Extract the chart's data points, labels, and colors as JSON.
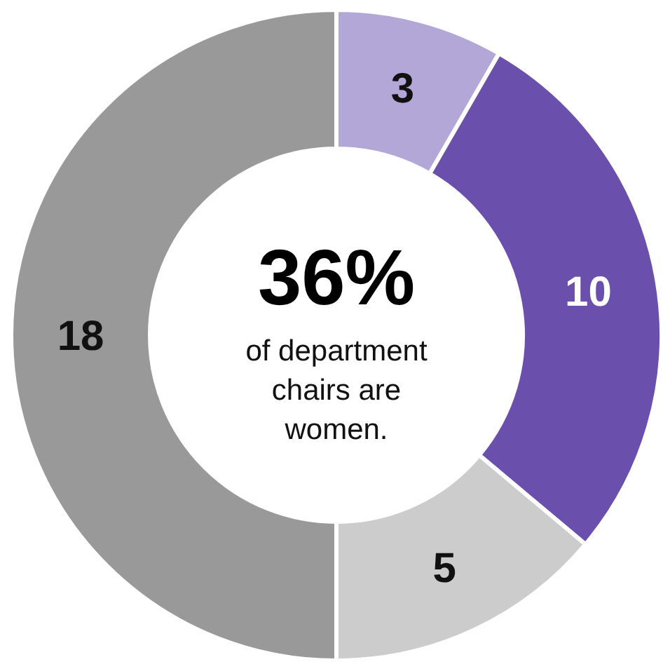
{
  "chart_data": {
    "type": "donut",
    "categories": [
      null,
      null,
      null,
      null
    ],
    "values": [
      3,
      10,
      5,
      18
    ],
    "colors": [
      "#b3a7d8",
      "#6a4fac",
      "#cccccc",
      "#999999"
    ],
    "data_labels": true,
    "annotations": [
      "36%",
      "of department chairs are women."
    ]
  }
}
